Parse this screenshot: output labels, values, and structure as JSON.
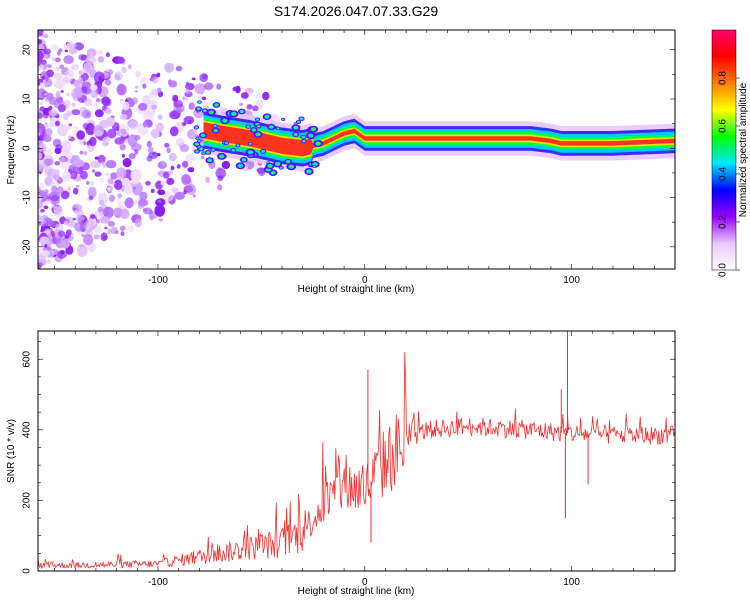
{
  "title": "S174.2026.047.07.33.G29",
  "chart_data": [
    {
      "type": "heatmap",
      "name": "spectrogram",
      "xlabel": "Height of straight line (km)",
      "ylabel": "Frequency (Hz)",
      "xlim": [
        -158,
        150
      ],
      "ylim": [
        -24.5,
        24
      ],
      "xticks": [
        -100,
        0,
        100
      ],
      "yticks": [
        -20,
        -10,
        0,
        10,
        20
      ],
      "colorbar": {
        "label": "Normalized spectral amplitude",
        "range": [
          0,
          1
        ],
        "ticks": [
          "0.0",
          "0.2",
          "0.4",
          "0.6",
          "0.8"
        ],
        "tick_values": [
          0.0,
          0.2,
          0.4,
          0.6,
          0.8
        ],
        "colors": [
          "#ffffff",
          "#e8c8ff",
          "#9900ff",
          "#0000ff",
          "#00e5ff",
          "#00ff00",
          "#ffff00",
          "#ff7f00",
          "#ff0000",
          "#ff0066"
        ]
      },
      "ridge": {
        "description": "dominant frequency track",
        "x": [
          -82,
          -70,
          -55,
          -40,
          -30,
          -20,
          -10,
          -5,
          0,
          10,
          20,
          40,
          60,
          80,
          90,
          95,
          100,
          120,
          150
        ],
        "y": [
          4,
          3,
          2,
          0.5,
          0,
          1,
          3,
          3.5,
          2,
          2,
          2,
          2,
          2,
          2,
          1.5,
          1,
          1,
          1,
          1.5
        ]
      }
    },
    {
      "type": "line",
      "name": "snr",
      "xlabel": "Height of straight line (km)",
      "ylabel": "SNR (10 * v/v)",
      "xlim": [
        -158,
        150
      ],
      "ylim": [
        0,
        680
      ],
      "xticks": [
        -100,
        0,
        100
      ],
      "yticks": [
        0,
        200,
        400,
        600
      ],
      "color": "#f03030",
      "trend": {
        "x": [
          -158,
          -100,
          -80,
          -60,
          -40,
          -30,
          -20,
          -10,
          0,
          10,
          20,
          30,
          50,
          80,
          100,
          120,
          150
        ],
        "y": [
          15,
          20,
          40,
          60,
          80,
          110,
          190,
          240,
          230,
          310,
          370,
          400,
          410,
          400,
          390,
          385,
          385
        ]
      },
      "spikes": [
        {
          "x": 1.5,
          "y": 570
        },
        {
          "x": 3,
          "y": 80
        },
        {
          "x": 95,
          "y": 515
        },
        {
          "x": 97,
          "y": 150
        },
        {
          "x": 98,
          "y": 680
        },
        {
          "x": 108,
          "y": 245
        }
      ]
    }
  ]
}
